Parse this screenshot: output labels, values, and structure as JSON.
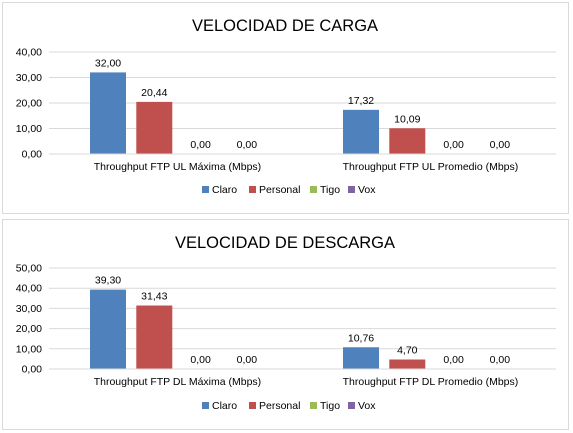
{
  "chart_data": [
    {
      "type": "bar",
      "title": "VELOCIDAD DE CARGA",
      "categories": [
        "Throughput FTP UL Máxima (Mbps)",
        "Throughput FTP UL Promedio (Mbps)"
      ],
      "series": [
        {
          "name": "Claro",
          "color": "#4f81bd",
          "values": [
            32.0,
            17.32
          ],
          "labels": [
            "32,00",
            "17,32"
          ]
        },
        {
          "name": "Personal",
          "color": "#c0504d",
          "values": [
            20.44,
            10.09
          ],
          "labels": [
            "20,44",
            "10,09"
          ]
        },
        {
          "name": "Tigo",
          "color": "#9bbb59",
          "values": [
            0.0,
            0.0
          ],
          "labels": [
            "0,00",
            "0,00"
          ]
        },
        {
          "name": "Vox",
          "color": "#8064a2",
          "values": [
            0.0,
            0.0
          ],
          "labels": [
            "0,00",
            "0,00"
          ]
        }
      ],
      "ylim": [
        0,
        40
      ],
      "yticks": [
        "0,00",
        "10,00",
        "20,00",
        "30,00",
        "40,00"
      ],
      "xlabel": "",
      "ylabel": "",
      "grid": true,
      "legend": "bottom"
    },
    {
      "type": "bar",
      "title": "VELOCIDAD DE DESCARGA",
      "categories": [
        "Throughput FTP DL Máxima (Mbps)",
        "Throughput FTP DL Promedio (Mbps)"
      ],
      "series": [
        {
          "name": "Claro",
          "color": "#4f81bd",
          "values": [
            39.3,
            10.76
          ],
          "labels": [
            "39,30",
            "10,76"
          ]
        },
        {
          "name": "Personal",
          "color": "#c0504d",
          "values": [
            31.43,
            4.7
          ],
          "labels": [
            "31,43",
            "4,70"
          ]
        },
        {
          "name": "Tigo",
          "color": "#9bbb59",
          "values": [
            0.0,
            0.0
          ],
          "labels": [
            "0,00",
            "0,00"
          ]
        },
        {
          "name": "Vox",
          "color": "#8064a2",
          "values": [
            0.0,
            0.0
          ],
          "labels": [
            "0,00",
            "0,00"
          ]
        }
      ],
      "ylim": [
        0,
        50
      ],
      "yticks": [
        "0,00",
        "10,00",
        "20,00",
        "30,00",
        "40,00",
        "50,00"
      ],
      "xlabel": "",
      "ylabel": "",
      "grid": true,
      "legend": "bottom"
    }
  ]
}
